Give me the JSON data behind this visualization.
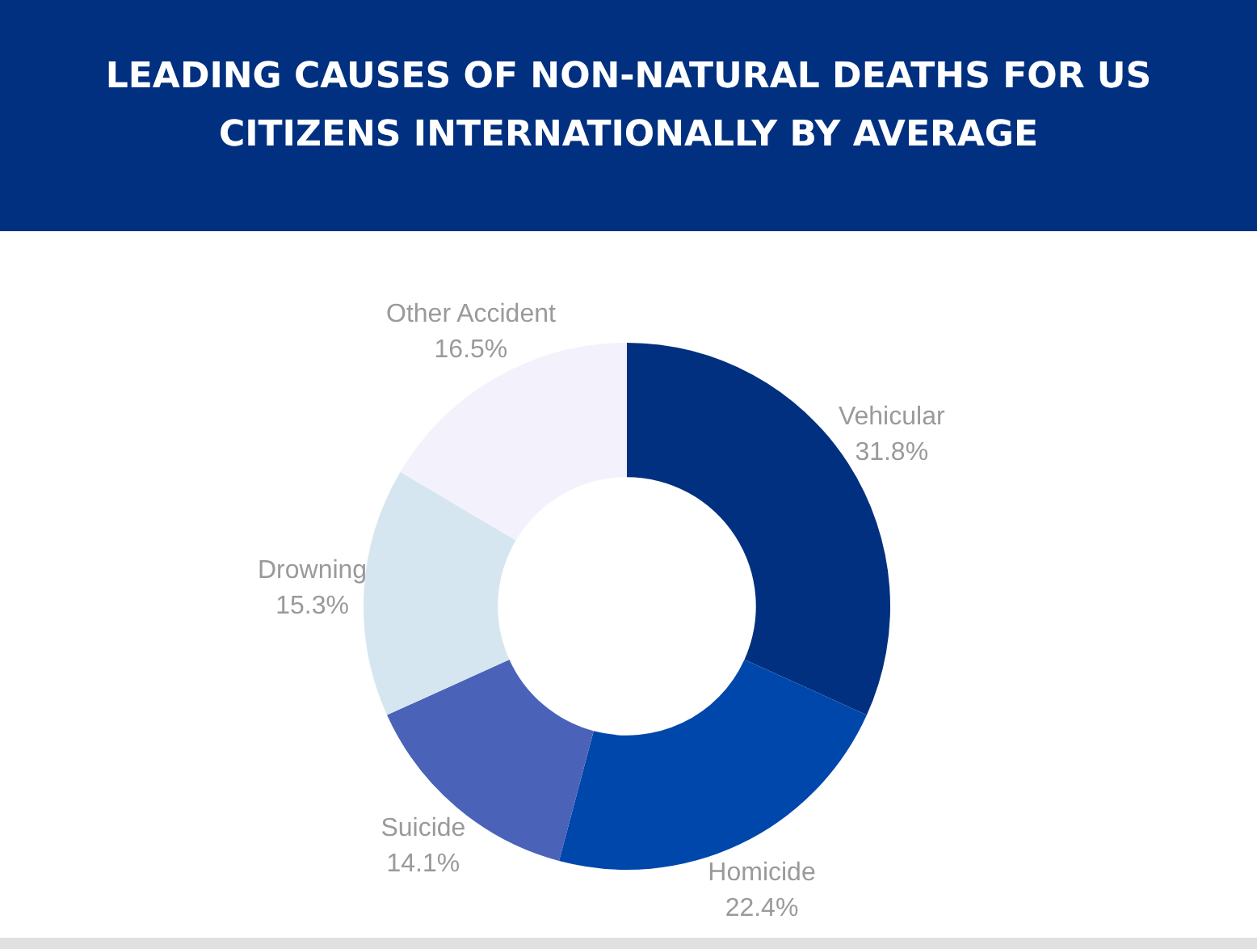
{
  "chart_data": {
    "type": "donut",
    "title": "LEADING CAUSES OF NON-NATURAL DEATHS FOR US CITIZENS INTERNATIONALLY BY AVERAGE",
    "categories": [
      "Vehicular",
      "Homicide",
      "Suicide",
      "Drowning",
      "Other Accident"
    ],
    "values": [
      31.8,
      22.4,
      14.1,
      15.3,
      16.5
    ],
    "colors": [
      "#00307f",
      "#0047ab",
      "#4a62b8",
      "#d5e6f0",
      "#f3f1fb"
    ],
    "value_labels": [
      "31.8%",
      "22.4%",
      "14.1%",
      "15.3%",
      "16.5%"
    ],
    "legend": false
  }
}
